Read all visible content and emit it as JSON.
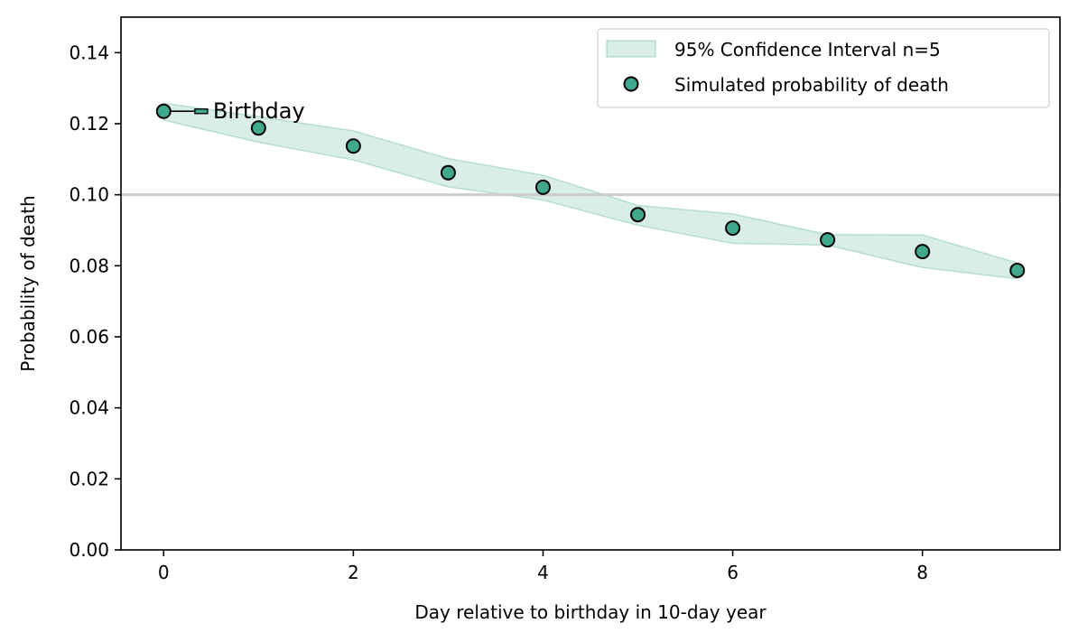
{
  "chart_data": {
    "type": "scatter",
    "title": "",
    "xlabel": "Day relative to birthday in 10-day year",
    "ylabel": "Probability of death",
    "xlim": [
      -0.45,
      9.45
    ],
    "ylim": [
      0,
      0.15
    ],
    "xticks": [
      0,
      2,
      4,
      6,
      8
    ],
    "yticks": [
      0.0,
      0.02,
      0.04,
      0.06,
      0.08,
      0.1,
      0.12,
      0.14
    ],
    "x_tick_labels": [
      "0",
      "2",
      "4",
      "6",
      "8"
    ],
    "y_tick_labels": [
      "0.00",
      "0.02",
      "0.04",
      "0.06",
      "0.08",
      "0.10",
      "0.12",
      "0.14"
    ],
    "reference_line": {
      "y": 0.1,
      "color": "#cccccc"
    },
    "legend_position": "top-right",
    "grid": false,
    "series": [
      {
        "name": "Simulated probability of death",
        "kind": "points",
        "color": "#3fa88d",
        "edge_color": "#000000",
        "x": [
          0,
          1,
          2,
          3,
          4,
          5,
          6,
          7,
          8,
          9
        ],
        "y": [
          0.1235,
          0.1188,
          0.1137,
          0.1062,
          0.1021,
          0.0944,
          0.0906,
          0.0873,
          0.084,
          0.0787
        ]
      },
      {
        "name": "95% Confidence Interval n=5",
        "kind": "band",
        "color": "#3fa88d",
        "opacity": 0.2,
        "x": [
          0,
          1,
          2,
          3,
          4,
          5,
          6,
          7,
          8,
          9
        ],
        "lower": [
          0.121,
          0.1148,
          0.1098,
          0.1022,
          0.0985,
          0.0914,
          0.0863,
          0.0858,
          0.0795,
          0.0763
        ],
        "upper": [
          0.1258,
          0.122,
          0.118,
          0.1102,
          0.1055,
          0.097,
          0.0946,
          0.0888,
          0.0887,
          0.0808
        ]
      }
    ],
    "annotations": [
      {
        "text": "Birthday",
        "x": 0,
        "y": 0.1235,
        "text_x": 0.52,
        "text_y": 0.1235,
        "arrow": true
      }
    ]
  }
}
